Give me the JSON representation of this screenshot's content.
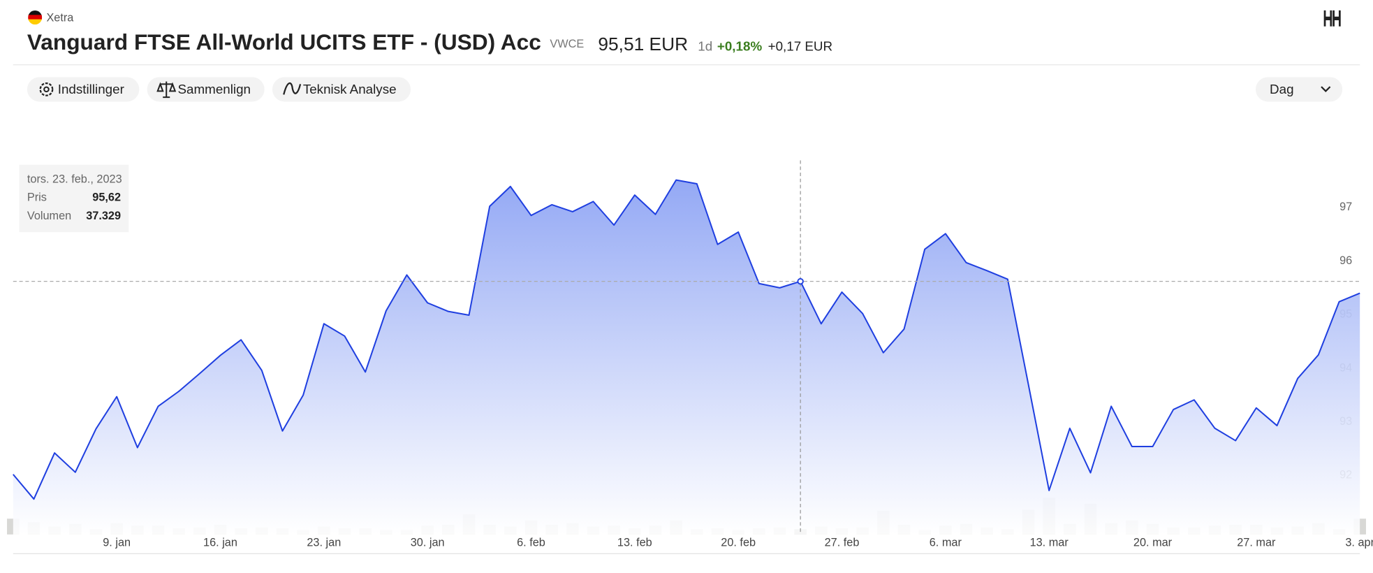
{
  "header": {
    "exchange": "Xetra",
    "title": "Vanguard FTSE All-World UCITS ETF - (USD) Acc",
    "ticker": "VWCE",
    "price": "95,51 EUR",
    "period": "1d",
    "change_pct": "+0,18%",
    "change_abs": "+0,17 EUR"
  },
  "toolbar": {
    "buttons": [
      "Indstillinger",
      "Sammenlign",
      "Teknisk Analyse"
    ],
    "interval": "Dag"
  },
  "tooltip": {
    "date": "tors. 23. feb., 2023",
    "rows": [
      [
        "Pris",
        "95,62"
      ],
      [
        "Volumen",
        "37.329"
      ]
    ]
  },
  "chart_data": {
    "type": "line",
    "categories": [
      null,
      null,
      null,
      null,
      null,
      "9. jan",
      null,
      null,
      null,
      null,
      "16. jan",
      null,
      null,
      null,
      null,
      "23. jan",
      null,
      null,
      null,
      null,
      "30. jan",
      null,
      null,
      null,
      null,
      "6. feb",
      null,
      null,
      null,
      null,
      "13. feb",
      null,
      null,
      null,
      null,
      "20. feb",
      null,
      null,
      null,
      null,
      "27. feb",
      null,
      null,
      null,
      null,
      "6. mar",
      null,
      null,
      null,
      null,
      "13. mar",
      null,
      null,
      null,
      null,
      "20. mar",
      null,
      null,
      null,
      null,
      "27. mar",
      null,
      null,
      null,
      null,
      "3. apr"
    ],
    "series": [
      {
        "color": "#1f3fe0",
        "values": [
          92.02,
          91.56,
          92.42,
          92.06,
          92.87,
          93.47,
          92.52,
          93.29,
          93.57,
          93.9,
          94.24,
          94.53,
          93.96,
          92.83,
          93.5,
          94.83,
          94.6,
          93.93,
          95.07,
          95.74,
          95.22,
          95.06,
          94.99,
          97.02,
          97.39,
          96.85,
          97.05,
          96.92,
          97.11,
          96.67,
          97.23,
          96.87,
          97.51,
          97.44,
          96.31,
          96.54,
          95.58,
          95.5,
          95.62,
          94.83,
          95.42,
          95.02,
          94.29,
          94.73,
          96.22,
          96.51,
          95.97,
          95.82,
          95.66,
          93.7,
          91.72,
          92.88,
          92.05,
          93.29,
          92.54,
          92.54,
          93.23,
          93.41,
          92.88,
          92.65,
          93.26,
          92.93,
          93.81,
          94.25,
          95.24,
          95.4
        ]
      }
    ],
    "volume": {
      "color": "#d8d8d5",
      "values": [
        111600,
        86800,
        55800,
        74400,
        37200,
        80600,
        62000,
        62000,
        43400,
        49600,
        68200,
        43400,
        49600,
        43400,
        31000,
        55800,
        43400,
        43400,
        31000,
        31000,
        62000,
        68200,
        142600,
        68200,
        55800,
        99200,
        68200,
        80600,
        55800,
        62000,
        43400,
        62000,
        99200,
        37200,
        43400,
        31000,
        43400,
        49600,
        37329,
        55800,
        43400,
        49600,
        167400,
        68200,
        31000,
        62000,
        74400,
        49600,
        37200,
        173600,
        260400,
        74400,
        217000,
        80600,
        99200,
        74400,
        49600,
        49600,
        62000,
        68200,
        68200,
        49600,
        55800,
        80600,
        37200,
        111600
      ]
    },
    "ylim": [
      90.9,
      98.6
    ],
    "yticks": [
      92,
      93,
      94,
      95,
      96,
      97
    ],
    "grid": false
  }
}
